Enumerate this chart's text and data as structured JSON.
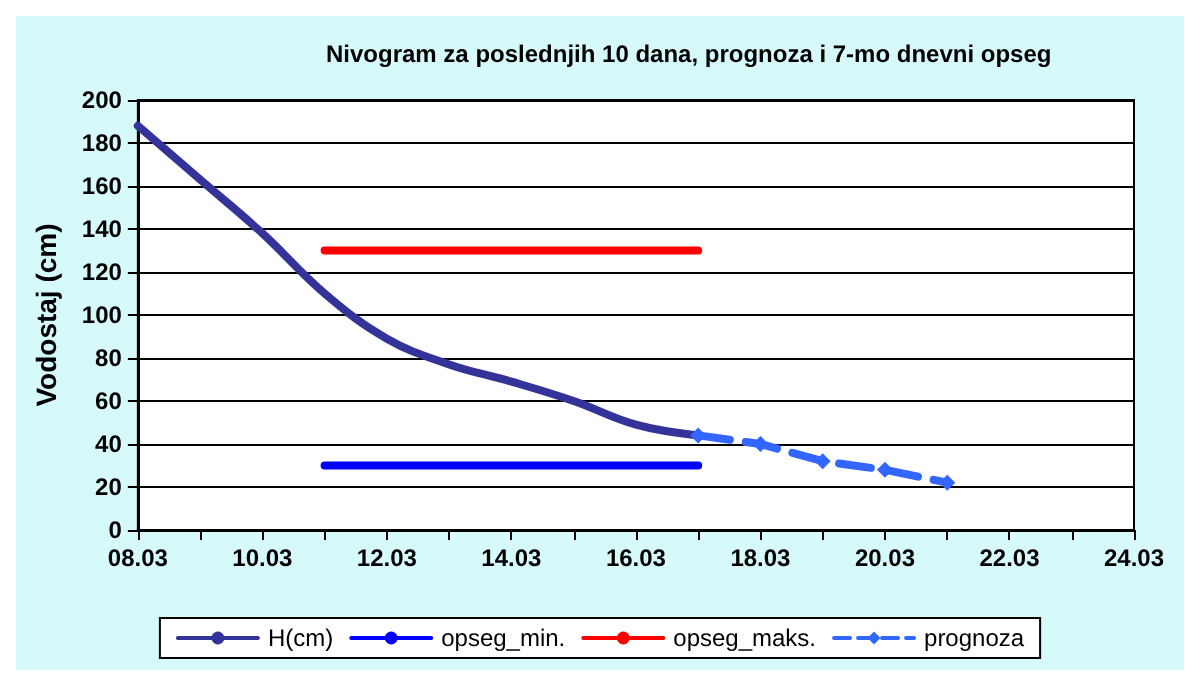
{
  "chart_data": {
    "type": "line",
    "title": "Nivogram za poslednjih 10 dana, prognoza i 7-mo dnevni opseg",
    "ylabel": "Vodostaj (cm)",
    "xlim": [
      "--03-08",
      "--03-24"
    ],
    "xticks": [
      {
        "value": "--03-08",
        "label": "08.03"
      },
      {
        "value": "--03-09",
        "label": null
      },
      {
        "value": "--03-10",
        "label": "10.03"
      },
      {
        "value": "--03-11",
        "label": null
      },
      {
        "value": "--03-12",
        "label": "12.03"
      },
      {
        "value": "--03-13",
        "label": null
      },
      {
        "value": "--03-14",
        "label": "14.03"
      },
      {
        "value": "--03-15",
        "label": null
      },
      {
        "value": "--03-16",
        "label": "16.03"
      },
      {
        "value": "--03-17",
        "label": null
      },
      {
        "value": "--03-18",
        "label": "18.03"
      },
      {
        "value": "--03-19",
        "label": null
      },
      {
        "value": "--03-20",
        "label": "20.03"
      },
      {
        "value": "--03-21",
        "label": null
      },
      {
        "value": "--03-22",
        "label": "22.03"
      },
      {
        "value": "--03-23",
        "label": null
      },
      {
        "value": "--03-24",
        "label": "24.03"
      }
    ],
    "ylim": [
      0,
      200
    ],
    "yticks": [
      0,
      20,
      40,
      60,
      80,
      100,
      120,
      140,
      160,
      180,
      200
    ],
    "grid": "y",
    "legend": "bottom",
    "series": [
      {
        "name": "H(cm)",
        "color": "#333399",
        "marker": "none",
        "line_style": "solid",
        "x": [
          "--03-08",
          "--03-09",
          "--03-10",
          "--03-11",
          "--03-12",
          "--03-13",
          "--03-14",
          "--03-15",
          "--03-16",
          "--03-17"
        ],
        "values": [
          188,
          163,
          138,
          110,
          89,
          77,
          69,
          60,
          49,
          44
        ]
      },
      {
        "name": "opseg_min.",
        "color": "#0000ff",
        "marker": "none",
        "line_style": "solid",
        "x": [
          "--03-11",
          "--03-12",
          "--03-13",
          "--03-14",
          "--03-15",
          "--03-16",
          "--03-17"
        ],
        "values": [
          30,
          30,
          30,
          30,
          30,
          30,
          30
        ]
      },
      {
        "name": "opseg_maks.",
        "color": "#ff0000",
        "marker": "none",
        "line_style": "solid",
        "x": [
          "--03-11",
          "--03-12",
          "--03-13",
          "--03-14",
          "--03-15",
          "--03-16",
          "--03-17"
        ],
        "values": [
          130,
          130,
          130,
          130,
          130,
          130,
          130
        ]
      },
      {
        "name": "prognoza",
        "color": "#3366ff",
        "marker": "diamond",
        "line_style": "dashed",
        "x": [
          "--03-17",
          "--03-18",
          "--03-19",
          "--03-20",
          "--03-21"
        ],
        "values": [
          44,
          40,
          32,
          28,
          22
        ]
      }
    ]
  }
}
